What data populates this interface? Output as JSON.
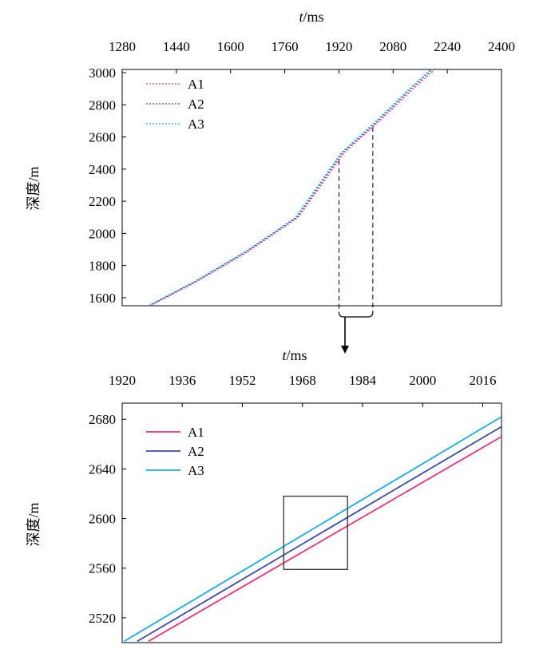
{
  "colors": {
    "A1": "#e8307e",
    "A2": "#3c4aa0",
    "A3": "#1aa9e1",
    "axis": "#000000",
    "box": "#333333"
  },
  "chart_data": [
    {
      "type": "line",
      "xlabel_italic": "t",
      "xlabel_unit": "/ms",
      "ylabel": "深度/m",
      "xlim": [
        1280,
        2400
      ],
      "ylim": [
        1550,
        3020
      ],
      "x_ticks": [
        1280,
        1440,
        1600,
        1760,
        1920,
        2080,
        2240,
        2400
      ],
      "y_ticks": [
        1600,
        1800,
        2000,
        2200,
        2400,
        2600,
        2800,
        3000
      ],
      "x_tick_labels": [
        "1280",
        "1440",
        "1600",
        "1760",
        "1920",
        "2080",
        "2240",
        "2400"
      ],
      "y_tick_labels": [
        "1600",
        "1800",
        "2000",
        "2200",
        "2400",
        "2600",
        "2800",
        "3000"
      ],
      "x_axis_position": "top",
      "line_style": "dotted",
      "legend_position": "top-left",
      "zoom_region": {
        "x": [
          1920,
          2020
        ]
      },
      "series": [
        {
          "name": "A1",
          "x": [
            1363,
            1500,
            1650,
            1800,
            1935,
            2040,
            2140,
            2203
          ],
          "y": [
            1550,
            1700,
            1885,
            2100,
            2500,
            2700,
            2900,
            3020
          ]
        },
        {
          "name": "A2",
          "x": [
            1360,
            1496,
            1646,
            1796,
            1930,
            2035,
            2133,
            2196
          ],
          "y": [
            1550,
            1700,
            1885,
            2100,
            2500,
            2700,
            2900,
            3020
          ]
        },
        {
          "name": "A3",
          "x": [
            1357,
            1492,
            1642,
            1792,
            1926,
            2030,
            2128,
            2190
          ],
          "y": [
            1550,
            1700,
            1885,
            2100,
            2500,
            2700,
            2900,
            3020
          ]
        }
      ]
    },
    {
      "type": "line",
      "xlabel_italic": "t",
      "xlabel_unit": "/ms",
      "ylabel": "深度/m",
      "xlim": [
        1920,
        2021
      ],
      "ylim": [
        2500,
        2693
      ],
      "x_ticks": [
        1920,
        1936,
        1952,
        1968,
        1984,
        2000,
        2016
      ],
      "y_ticks": [
        2520,
        2560,
        2600,
        2640,
        2680
      ],
      "x_tick_labels": [
        "1920",
        "1936",
        "1952",
        "1968",
        "1984",
        "2000",
        "2016"
      ],
      "y_tick_labels": [
        "2520",
        "2560",
        "2600",
        "2640",
        "2680"
      ],
      "x_axis_position": "top",
      "line_style": "solid",
      "legend_position": "top-left",
      "highlight_box": {
        "x": [
          1963,
          1980
        ],
        "y": [
          2559,
          2618
        ]
      },
      "series": [
        {
          "name": "A1",
          "x": [
            1927,
            2021
          ],
          "y": [
            2501,
            2666
          ]
        },
        {
          "name": "A2",
          "x": [
            1924,
            2021
          ],
          "y": [
            2501,
            2674
          ]
        },
        {
          "name": "A3",
          "x": [
            1920.5,
            2021
          ],
          "y": [
            2501,
            2682
          ]
        }
      ]
    }
  ]
}
